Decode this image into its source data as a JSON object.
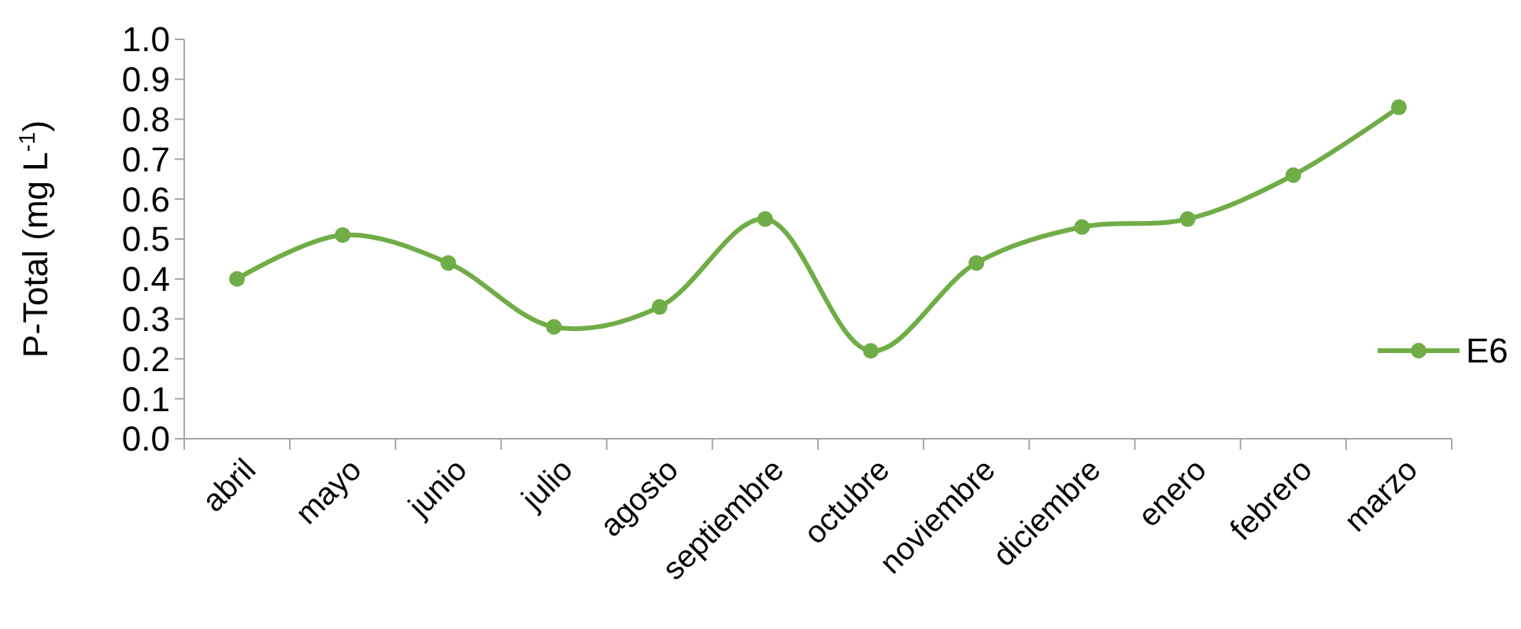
{
  "chart_data": {
    "type": "line",
    "ylabel": "P-Total (mg L$^{-1}$)",
    "categories": [
      "abril",
      "mayo",
      "junio",
      "julio",
      "agosto",
      "septiembre",
      "octubre",
      "noviembre",
      "diciembre",
      "enero",
      "febrero",
      "marzo"
    ],
    "series": [
      {
        "name": "E6",
        "color": "#70ad47",
        "values": [
          0.4,
          0.51,
          0.44,
          0.28,
          0.33,
          0.55,
          0.22,
          0.44,
          0.53,
          0.55,
          0.66,
          0.83
        ]
      }
    ],
    "ylim": [
      0,
      1
    ],
    "yticks": [
      {
        "value": 0,
        "label": "0.0"
      },
      {
        "value": 0.1,
        "label": "0.1"
      },
      {
        "value": 0.2,
        "label": "0.2"
      },
      {
        "value": 0.3,
        "label": "0.3"
      },
      {
        "value": 0.4,
        "label": "0.4"
      },
      {
        "value": 0.5,
        "label": "0.5"
      },
      {
        "value": 0.6,
        "label": "0.6"
      },
      {
        "value": 0.7,
        "label": "0.7"
      },
      {
        "value": 0.8,
        "label": "0.8"
      },
      {
        "value": 0.9,
        "label": "0.9"
      },
      {
        "value": 1,
        "label": "1.0"
      }
    ],
    "grid": false,
    "legend": "right",
    "marker": "circle",
    "line_style": "solid"
  }
}
